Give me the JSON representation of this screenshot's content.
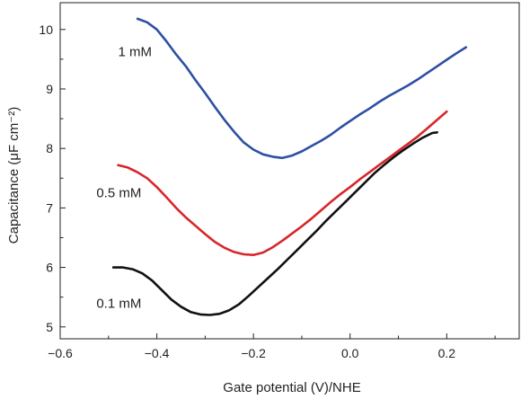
{
  "chart_data": {
    "type": "line",
    "xlabel": "Gate potential (V)/NHE",
    "ylabel": "Capacitance (μF cm⁻²)",
    "xlim": [
      -0.6,
      0.35
    ],
    "ylim": [
      4.8,
      10.45
    ],
    "xticks": [
      -0.6,
      -0.4,
      -0.2,
      0.0,
      0.2
    ],
    "xtick_labels": [
      "−0.6",
      "−0.4",
      "−0.2",
      "0.0",
      "0.2"
    ],
    "yticks": [
      5,
      6,
      7,
      8,
      9,
      10
    ],
    "ytick_labels": [
      "5",
      "6",
      "7",
      "8",
      "9",
      "10"
    ],
    "grid": false,
    "legend": "none",
    "series": [
      {
        "name": "1 mM",
        "color": "#2e4fa3",
        "label_at": [
          -0.48,
          9.55
        ],
        "x": [
          -0.44,
          -0.42,
          -0.4,
          -0.38,
          -0.36,
          -0.34,
          -0.32,
          -0.3,
          -0.28,
          -0.26,
          -0.24,
          -0.22,
          -0.2,
          -0.18,
          -0.16,
          -0.14,
          -0.12,
          -0.1,
          -0.08,
          -0.06,
          -0.04,
          -0.02,
          0.0,
          0.02,
          0.04,
          0.06,
          0.08,
          0.1,
          0.12,
          0.14,
          0.16,
          0.18,
          0.2,
          0.22,
          0.24
        ],
        "y": [
          10.18,
          10.12,
          10.0,
          9.8,
          9.58,
          9.38,
          9.15,
          8.93,
          8.7,
          8.48,
          8.28,
          8.1,
          7.98,
          7.9,
          7.86,
          7.84,
          7.88,
          7.95,
          8.04,
          8.13,
          8.23,
          8.35,
          8.46,
          8.57,
          8.67,
          8.78,
          8.88,
          8.97,
          9.06,
          9.16,
          9.27,
          9.38,
          9.49,
          9.6,
          9.7
        ]
      },
      {
        "name": "0.5 mM",
        "color": "#d7262b",
        "label_at": [
          -0.525,
          7.18
        ],
        "x": [
          -0.48,
          -0.46,
          -0.44,
          -0.42,
          -0.4,
          -0.38,
          -0.36,
          -0.34,
          -0.32,
          -0.3,
          -0.28,
          -0.26,
          -0.24,
          -0.22,
          -0.2,
          -0.18,
          -0.16,
          -0.14,
          -0.12,
          -0.1,
          -0.08,
          -0.06,
          -0.04,
          -0.02,
          0.0,
          0.02,
          0.04,
          0.06,
          0.08,
          0.1,
          0.12,
          0.14,
          0.16,
          0.18,
          0.2
        ],
        "y": [
          7.72,
          7.68,
          7.6,
          7.5,
          7.35,
          7.18,
          7.0,
          6.84,
          6.7,
          6.56,
          6.43,
          6.33,
          6.26,
          6.22,
          6.21,
          6.25,
          6.34,
          6.45,
          6.57,
          6.69,
          6.82,
          6.96,
          7.1,
          7.23,
          7.35,
          7.48,
          7.6,
          7.72,
          7.84,
          7.96,
          8.08,
          8.2,
          8.34,
          8.48,
          8.62
        ]
      },
      {
        "name": "0.1 mM",
        "color": "#111111",
        "label_at": [
          -0.525,
          5.32
        ],
        "x": [
          -0.49,
          -0.47,
          -0.45,
          -0.43,
          -0.41,
          -0.39,
          -0.37,
          -0.35,
          -0.33,
          -0.31,
          -0.29,
          -0.27,
          -0.25,
          -0.23,
          -0.21,
          -0.19,
          -0.17,
          -0.15,
          -0.13,
          -0.11,
          -0.09,
          -0.07,
          -0.05,
          -0.03,
          -0.01,
          0.01,
          0.03,
          0.05,
          0.07,
          0.09,
          0.11,
          0.13,
          0.15,
          0.17,
          0.18
        ],
        "y": [
          6.0,
          6.0,
          5.97,
          5.9,
          5.78,
          5.62,
          5.46,
          5.34,
          5.25,
          5.21,
          5.2,
          5.22,
          5.28,
          5.38,
          5.52,
          5.67,
          5.82,
          5.97,
          6.13,
          6.29,
          6.45,
          6.61,
          6.78,
          6.94,
          7.1,
          7.26,
          7.42,
          7.58,
          7.72,
          7.85,
          7.97,
          8.08,
          8.18,
          8.26,
          8.27
        ]
      }
    ]
  }
}
